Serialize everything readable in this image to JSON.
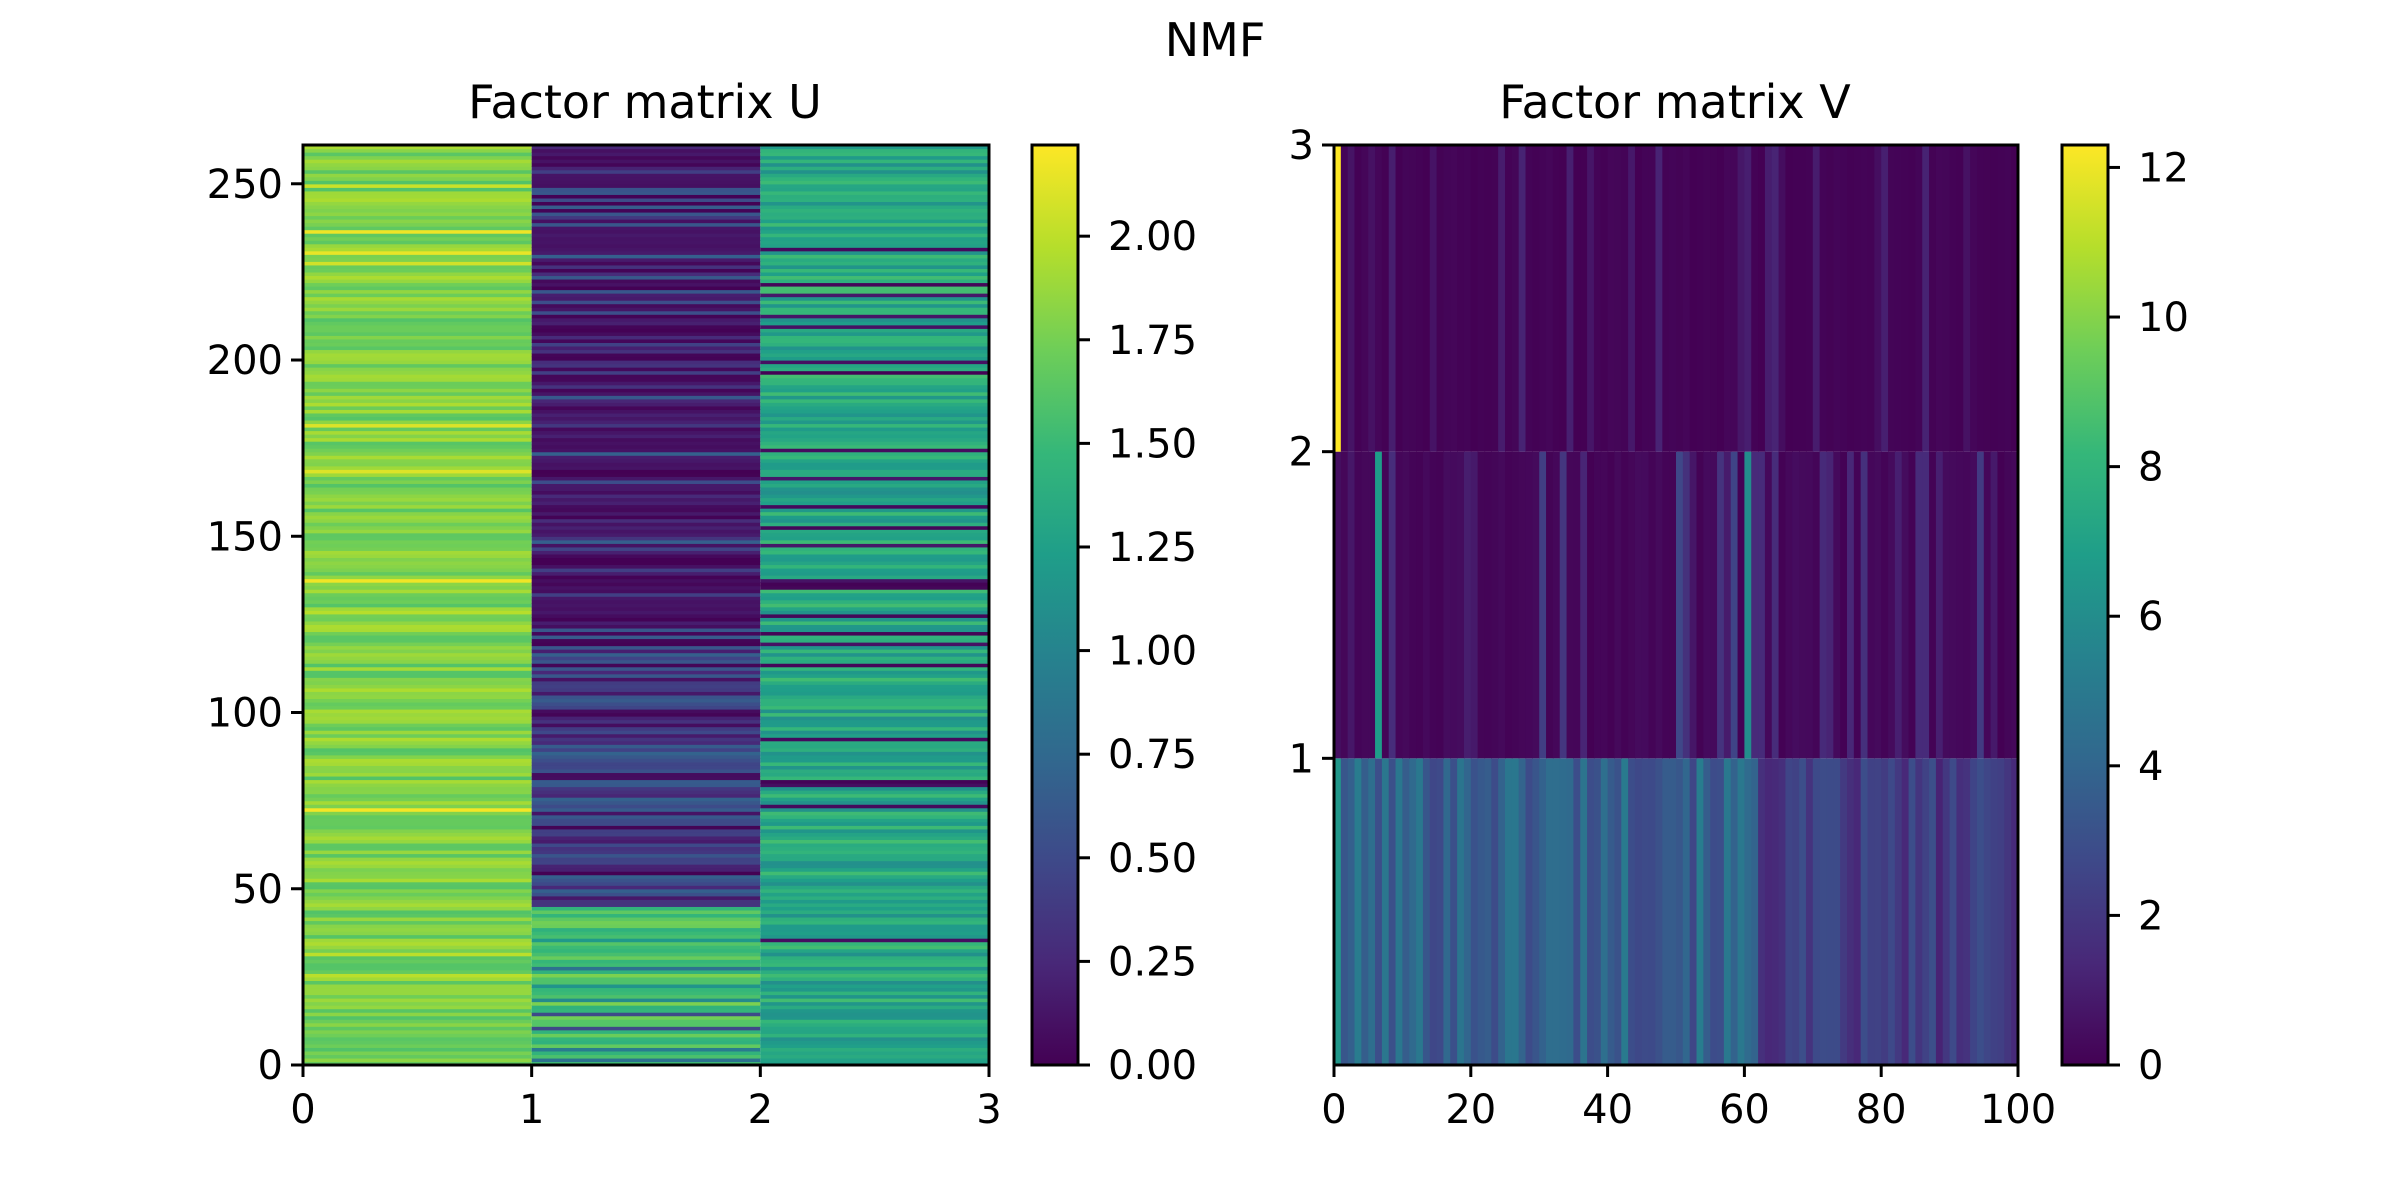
{
  "figure": {
    "title": "NMF"
  },
  "chart_data": [
    {
      "type": "heatmap",
      "title": "Factor matrix U",
      "xlabel": "",
      "ylabel": "",
      "xlim": [
        0,
        3
      ],
      "ylim": [
        0,
        261
      ],
      "xticks": [
        0,
        1,
        2,
        3
      ],
      "yticks": [
        0,
        50,
        100,
        150,
        200,
        250
      ],
      "rows": 261,
      "columns": [
        {
          "index": 0,
          "typical_range": [
            1.55,
            2.2
          ],
          "mean": 1.75
        },
        {
          "index": 1,
          "typical_range": [
            0.0,
            1.8
          ],
          "mean": 0.45
        },
        {
          "index": 2,
          "typical_range": [
            0.0,
            1.5
          ],
          "mean": 1.2
        }
      ],
      "colormap": "viridis",
      "colorbar": {
        "min": 0.0,
        "max": 2.22,
        "ticks": [
          "0.00",
          "0.25",
          "0.50",
          "0.75",
          "1.00",
          "1.25",
          "1.50",
          "1.75",
          "2.00"
        ]
      }
    },
    {
      "type": "heatmap",
      "title": "Factor matrix V",
      "xlabel": "",
      "ylabel": "",
      "xlim": [
        0,
        100
      ],
      "ylim": [
        0,
        3
      ],
      "xticks": [
        0,
        20,
        40,
        60,
        80,
        100
      ],
      "yticks": [
        1,
        2,
        3
      ],
      "rows": [
        {
          "index": 0,
          "first_cell": 6.5,
          "typical_range": [
            1.0,
            6.5
          ],
          "mean": 3.0
        },
        {
          "index": 1,
          "first_cell": 0.5,
          "notable": [
            {
              "x": 6,
              "value": 6.8
            },
            {
              "x": 60,
              "value": 6.0
            }
          ],
          "typical_range": [
            0.0,
            3.0
          ],
          "mean": 0.6
        },
        {
          "index": 2,
          "first_cell": 12.3,
          "typical_range": [
            0.0,
            1.5
          ],
          "mean": 0.3
        }
      ],
      "colormap": "viridis",
      "colorbar": {
        "min": 0,
        "max": 12.3,
        "ticks": [
          "0",
          "2",
          "4",
          "6",
          "8",
          "10",
          "12"
        ]
      }
    }
  ]
}
